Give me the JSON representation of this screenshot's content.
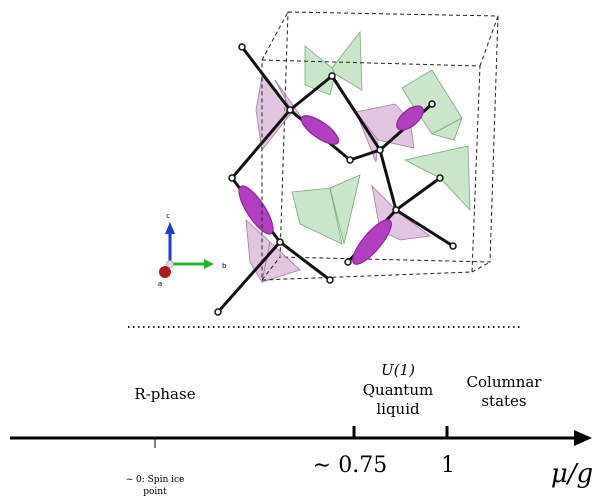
{
  "axes_triad": {
    "labels": [
      "c",
      "b",
      "a"
    ]
  },
  "divider": "dotted",
  "phase_diagram": {
    "phases": [
      {
        "lines": [
          "R-phase"
        ]
      },
      {
        "lines": [
          "U(1)",
          "Quantum",
          "liquid"
        ]
      },
      {
        "lines": [
          "Columnar",
          "states"
        ]
      }
    ],
    "tick_labels": {
      "spin_ice_line1": "~ 0: Spin ice",
      "spin_ice_line2": "point",
      "critical": "∼ 0.75",
      "one": "1"
    },
    "axis_label": "μ/g"
  }
}
